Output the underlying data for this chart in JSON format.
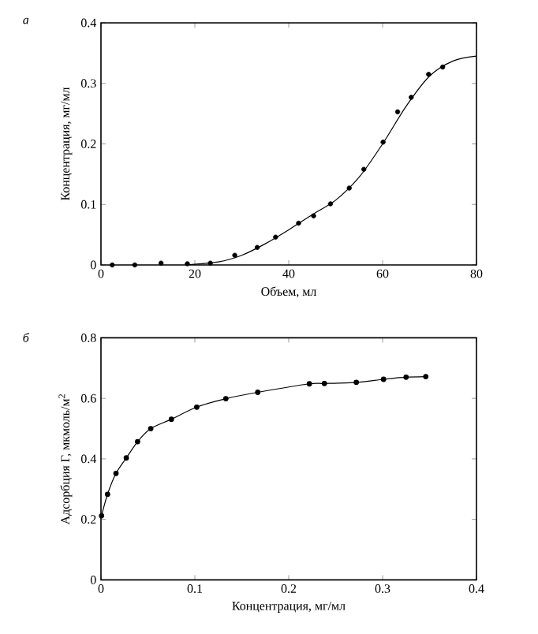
{
  "chart_data": [
    {
      "type": "scatter",
      "title": "а",
      "xlabel": "Объем, мл",
      "ylabel": "Концентрация, мг/мл",
      "xlim": [
        0,
        80
      ],
      "ylim": [
        0,
        0.4
      ],
      "xticks": [
        0,
        20,
        40,
        60,
        80
      ],
      "yticks": [
        0,
        0.1,
        0.2,
        0.3,
        0.4
      ],
      "series": [
        {
          "color": "#000000",
          "marker": "circle",
          "x": [
            2.4,
            7.2,
            12.8,
            18.4,
            23.3,
            28.5,
            33.3,
            37.2,
            42.1,
            45.3,
            48.9,
            52.9,
            56.0,
            60.1,
            63.2,
            66.1,
            69.8,
            72.8
          ],
          "values": [
            0,
            0,
            0.003,
            0.002,
            0.003,
            0.016,
            0.029,
            0.046,
            0.069,
            0.081,
            0.101,
            0.127,
            0.158,
            0.203,
            0.253,
            0.277,
            0.315,
            0.327
          ]
        },
        {
          "type": "line",
          "color": "#000000",
          "marker": "none",
          "line_style": "solid",
          "x": [
            18,
            25,
            30,
            35,
            40,
            45,
            50,
            55,
            60,
            65,
            70,
            75,
            80
          ],
          "values": [
            0,
            0.005,
            0.016,
            0.035,
            0.058,
            0.083,
            0.107,
            0.145,
            0.2,
            0.262,
            0.312,
            0.337,
            0.345
          ]
        }
      ]
    },
    {
      "type": "line",
      "title": "б",
      "xlabel": "Концентрация, мг/мл",
      "ylabel": "Адсорбция Г, мкмоль/м$^{2}$",
      "xlim": [
        0,
        0.4
      ],
      "ylim": [
        0,
        0.8
      ],
      "xticks": [
        0,
        0.1,
        0.2,
        0.3,
        0.4
      ],
      "yticks": [
        0,
        0.2,
        0.4,
        0.6,
        0.8
      ],
      "series": [
        {
          "color": "#000000",
          "marker": "circle",
          "line_style": "solid",
          "x": [
            0.0006,
            0.007,
            0.016,
            0.027,
            0.039,
            0.053,
            0.075,
            0.102,
            0.133,
            0.167,
            0.222,
            0.238,
            0.272,
            0.301,
            0.325,
            0.346
          ],
          "values": [
            0.212,
            0.283,
            0.352,
            0.403,
            0.457,
            0.5,
            0.531,
            0.571,
            0.599,
            0.62,
            0.648,
            0.649,
            0.653,
            0.663,
            0.67,
            0.672
          ]
        }
      ]
    }
  ]
}
